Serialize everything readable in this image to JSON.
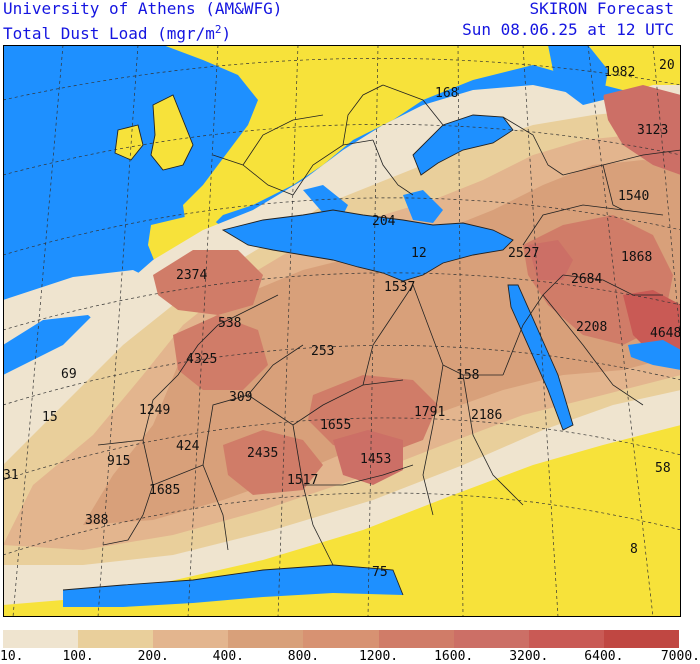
{
  "header": {
    "institution": "University of Athens (AM&WFG)",
    "product": "SKIRON Forecast",
    "variable": "Total Dust Load (mgr/m",
    "unit_superscript": "2",
    "variable_close": ")",
    "valid_time": "Sun 08.06.25 at 12 UTC"
  },
  "colors": {
    "sea": "#1e90ff",
    "zero_dust_land": "#f7e23a",
    "border": "#222222",
    "grid": "#333333"
  },
  "legend": {
    "colors": [
      "#efe4cf",
      "#e9cf9b",
      "#e3b58e",
      "#d8a07a",
      "#d79272",
      "#d07c68",
      "#cc6f66",
      "#c95a55",
      "#c04742"
    ],
    "ticks": [
      "10.",
      "100.",
      "200.",
      "400.",
      "800.",
      "1200.",
      "1600.",
      "3200.",
      "6400.",
      "7000."
    ]
  },
  "labels": [
    {
      "text": "1982"
    },
    {
      "text": "20"
    },
    {
      "text": "3123"
    },
    {
      "text": "168"
    },
    {
      "text": "1540"
    },
    {
      "text": "204"
    },
    {
      "text": "12"
    },
    {
      "text": "2527"
    },
    {
      "text": "1868"
    },
    {
      "text": "2374"
    },
    {
      "text": "2684"
    },
    {
      "text": "1537"
    },
    {
      "text": "538"
    },
    {
      "text": "2208"
    },
    {
      "text": "4648"
    },
    {
      "text": "4325"
    },
    {
      "text": "253"
    },
    {
      "text": "69"
    },
    {
      "text": "158"
    },
    {
      "text": "309"
    },
    {
      "text": "1791"
    },
    {
      "text": "2186"
    },
    {
      "text": "15"
    },
    {
      "text": "1249"
    },
    {
      "text": "1655"
    },
    {
      "text": "424"
    },
    {
      "text": "2435"
    },
    {
      "text": "915"
    },
    {
      "text": "1453"
    },
    {
      "text": "58"
    },
    {
      "text": "31"
    },
    {
      "text": "1517"
    },
    {
      "text": "1685"
    },
    {
      "text": "388"
    },
    {
      "text": "8"
    },
    {
      "text": "75"
    }
  ]
}
